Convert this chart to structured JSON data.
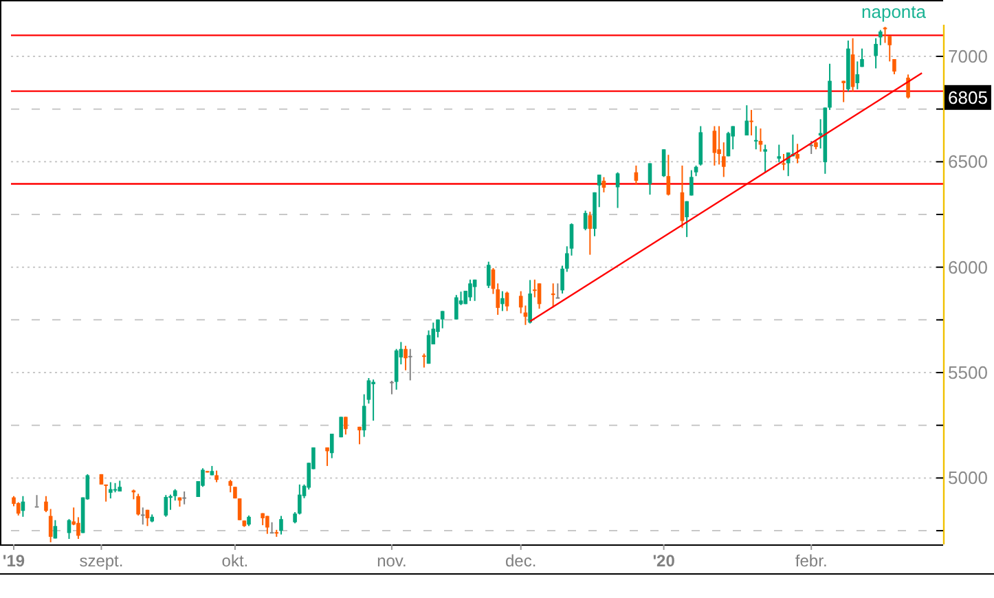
{
  "chart_data": {
    "type": "candlestick",
    "title": "naponta",
    "x": [
      "2019-08-14",
      "2019-08-15",
      "2019-08-16",
      "2019-08-19",
      "2019-08-21",
      "2019-08-22",
      "2019-08-23",
      "2019-08-26",
      "2019-08-27",
      "2019-08-28",
      "2019-08-29",
      "2019-08-30",
      "2019-09-02",
      "2019-09-03",
      "2019-09-04",
      "2019-09-05",
      "2019-09-06",
      "2019-09-09",
      "2019-09-10",
      "2019-09-11",
      "2019-09-12",
      "2019-09-13",
      "2019-09-16",
      "2019-09-17",
      "2019-09-18",
      "2019-09-19",
      "2019-09-20",
      "2019-09-23",
      "2019-09-24",
      "2019-09-25",
      "2019-09-26",
      "2019-09-27",
      "2019-09-30",
      "2019-10-01",
      "2019-10-02",
      "2019-10-03",
      "2019-10-04",
      "2019-10-07",
      "2019-10-08",
      "2019-10-09",
      "2019-10-10",
      "2019-10-11",
      "2019-10-14",
      "2019-10-15",
      "2019-10-16",
      "2019-10-17",
      "2019-10-18",
      "2019-10-21",
      "2019-10-22",
      "2019-10-24",
      "2019-10-25",
      "2019-10-28",
      "2019-10-29",
      "2019-10-30",
      "2019-10-31",
      "2019-11-04",
      "2019-11-05",
      "2019-11-06",
      "2019-11-07",
      "2019-11-08",
      "2019-11-11",
      "2019-11-12",
      "2019-11-13",
      "2019-11-14",
      "2019-11-15",
      "2019-11-18",
      "2019-11-19",
      "2019-11-20",
      "2019-11-21",
      "2019-11-22",
      "2019-11-25",
      "2019-11-26",
      "2019-11-27",
      "2019-11-28",
      "2019-11-29",
      "2019-12-02",
      "2019-12-03",
      "2019-12-04",
      "2019-12-05",
      "2019-12-06",
      "2019-12-09",
      "2019-12-10",
      "2019-12-11",
      "2019-12-12",
      "2019-12-13",
      "2019-12-16",
      "2019-12-17",
      "2019-12-18",
      "2019-12-19",
      "2019-12-20",
      "2019-12-23",
      "2019-12-27",
      "2019-12-30",
      "2020-01-02",
      "2020-01-03",
      "2020-01-06",
      "2020-01-07",
      "2020-01-08",
      "2020-01-09",
      "2020-01-10",
      "2020-01-13",
      "2020-01-14",
      "2020-01-15",
      "2020-01-16",
      "2020-01-17",
      "2020-01-20",
      "2020-01-21",
      "2020-01-22",
      "2020-01-23",
      "2020-01-24",
      "2020-01-27",
      "2020-01-28",
      "2020-01-29",
      "2020-01-30",
      "2020-01-31",
      "2020-02-03",
      "2020-02-04",
      "2020-02-05",
      "2020-02-06",
      "2020-02-07",
      "2020-02-10",
      "2020-02-11",
      "2020-02-12",
      "2020-02-13",
      "2020-02-14",
      "2020-02-17",
      "2020-02-18",
      "2020-02-19",
      "2020-02-20",
      "2020-02-21",
      "2020-02-24"
    ],
    "ohlc": [
      [
        4908,
        4914,
        4866,
        4877
      ],
      [
        4881,
        4885,
        4822,
        4831
      ],
      [
        4844,
        4914,
        4816,
        4888
      ],
      [
        4866,
        4919,
        4866,
        4866
      ],
      [
        4888,
        4914,
        4838,
        4844
      ],
      [
        4820,
        4853,
        4695,
        4721
      ],
      [
        4713,
        4800,
        4713,
        4772
      ],
      [
        4739,
        4805,
        4711,
        4800
      ],
      [
        4794,
        4860,
        4776,
        4779
      ],
      [
        4787,
        4814,
        4711,
        4726
      ],
      [
        4739,
        4908,
        4739,
        4908
      ],
      [
        4899,
        5018,
        4897,
        5013
      ],
      [
        5018,
        5018,
        4969,
        4969
      ],
      [
        4969,
        4969,
        4888,
        4965
      ],
      [
        4930,
        4980,
        4903,
        4947
      ],
      [
        4943,
        4976,
        4932,
        4947
      ],
      [
        4936,
        4987,
        4936,
        4958
      ],
      [
        4941,
        4945,
        4899,
        4932
      ],
      [
        4914,
        4925,
        4822,
        4827
      ],
      [
        4827,
        4860,
        4779,
        4827
      ],
      [
        4849,
        4849,
        4772,
        4809
      ],
      [
        4794,
        4827,
        4790,
        4816
      ],
      [
        4822,
        4919,
        4816,
        4910
      ],
      [
        4906,
        4921,
        4849,
        4914
      ],
      [
        4914,
        4947,
        4893,
        4941
      ],
      [
        4908,
        4908,
        4864,
        4893
      ],
      [
        4908,
        4936,
        4875,
        4908
      ],
      [
        4910,
        4985,
        4910,
        4985
      ],
      [
        4963,
        5046,
        4958,
        5039
      ],
      [
        5033,
        5033,
        5026,
        5026
      ],
      [
        5013,
        5057,
        5013,
        5033
      ],
      [
        5013,
        5035,
        4980,
        4991
      ],
      [
        4985,
        4991,
        4932,
        4963
      ],
      [
        4958,
        4958,
        4903,
        4903
      ],
      [
        4903,
        4903,
        4800,
        4800
      ],
      [
        4798,
        4798,
        4768,
        4772
      ],
      [
        4779,
        4822,
        4772,
        4816
      ],
      [
        4833,
        4833,
        4776,
        4809
      ],
      [
        4820,
        4820,
        4735,
        4765
      ],
      [
        4743,
        4790,
        4743,
        4743
      ],
      [
        4743,
        4754,
        4721,
        4739
      ],
      [
        4750,
        4820,
        4732,
        4805
      ],
      [
        4790,
        4838,
        4785,
        4831
      ],
      [
        4831,
        4969,
        4827,
        4921
      ],
      [
        4914,
        4969,
        4904,
        4963
      ],
      [
        4954,
        5072,
        4945,
        5072
      ],
      [
        5042,
        5145,
        5042,
        5145
      ],
      [
        5145,
        5145,
        5057,
        5127
      ],
      [
        5118,
        5210,
        5094,
        5210
      ],
      [
        5193,
        5290,
        5193,
        5290
      ],
      [
        5290,
        5290,
        5206,
        5232
      ],
      [
        5243,
        5243,
        5160,
        5226
      ],
      [
        5226,
        5397,
        5195,
        5342
      ],
      [
        5371,
        5474,
        5353,
        5463
      ],
      [
        5445,
        5467,
        5272,
        5456
      ],
      [
        5456,
        5461,
        5397,
        5456
      ],
      [
        5456,
        5612,
        5419,
        5605
      ],
      [
        5572,
        5645,
        5539,
        5612
      ],
      [
        5612,
        5627,
        5511,
        5568
      ],
      [
        5579,
        5612,
        5463,
        5579
      ],
      [
        5581,
        5590,
        5524,
        5577
      ],
      [
        5542,
        5700,
        5542,
        5678
      ],
      [
        5634,
        5737,
        5634,
        5708
      ],
      [
        5693,
        5752,
        5667,
        5752
      ],
      [
        5752,
        5792,
        5710,
        5792
      ],
      [
        5752,
        5868,
        5752,
        5857
      ],
      [
        5825,
        5884,
        5820,
        5842
      ],
      [
        5825,
        5888,
        5825,
        5888
      ],
      [
        5857,
        5941,
        5840,
        5923
      ],
      [
        5906,
        5941,
        5840,
        5941
      ],
      [
        5912,
        6026,
        5901,
        6011
      ],
      [
        5989,
        5996,
        5873,
        5897
      ],
      [
        5895,
        5923,
        5774,
        5807
      ],
      [
        5825,
        5886,
        5792,
        5853
      ],
      [
        5879,
        5884,
        5792,
        5814
      ],
      [
        5864,
        5886,
        5781,
        5809
      ],
      [
        5785,
        5818,
        5726,
        5765
      ],
      [
        5737,
        5939,
        5733,
        5875
      ],
      [
        5894,
        5941,
        5857,
        5890
      ],
      [
        5923,
        5923,
        5803,
        5825
      ],
      [
        5875,
        5923,
        5809,
        5868
      ],
      [
        5857,
        5923,
        5853,
        5857
      ],
      [
        5890,
        6007,
        5875,
        5993
      ],
      [
        5993,
        6099,
        5978,
        6066
      ],
      [
        6088,
        6208,
        6055,
        6204
      ],
      [
        6182,
        6268,
        6175,
        6257
      ],
      [
        6246,
        6263,
        6059,
        6182
      ],
      [
        6182,
        6355,
        6147,
        6355
      ],
      [
        6388,
        6439,
        6285,
        6439
      ],
      [
        6410,
        6427,
        6355,
        6377
      ],
      [
        6379,
        6450,
        6281,
        6445
      ],
      [
        6450,
        6482,
        6390,
        6410
      ],
      [
        6395,
        6493,
        6344,
        6493
      ],
      [
        6432,
        6559,
        6428,
        6559
      ],
      [
        6432,
        6533,
        6340,
        6344
      ],
      [
        6355,
        6482,
        6186,
        6219
      ],
      [
        6237,
        6313,
        6143,
        6313
      ],
      [
        6340,
        6460,
        6340,
        6428
      ],
      [
        6450,
        6482,
        6432,
        6476
      ],
      [
        6487,
        6669,
        6482,
        6640
      ],
      [
        6647,
        6669,
        6482,
        6542
      ],
      [
        6559,
        6669,
        6487,
        6537
      ],
      [
        6526,
        6592,
        6428,
        6476
      ],
      [
        6526,
        6642,
        6526,
        6636
      ],
      [
        6620,
        6669,
        6559,
        6669
      ],
      [
        6625,
        6768,
        6625,
        6695
      ],
      [
        6695,
        6746,
        6625,
        6691
      ],
      [
        6600,
        6669,
        6559,
        6603
      ],
      [
        6599,
        6658,
        6548,
        6581
      ],
      [
        6548,
        6581,
        6450,
        6559
      ],
      [
        6515,
        6581,
        6498,
        6526
      ],
      [
        6493,
        6537,
        6460,
        6487
      ],
      [
        6493,
        6544,
        6432,
        6544
      ],
      [
        6526,
        6629,
        6526,
        6537
      ],
      [
        6537,
        6585,
        6493,
        6515
      ],
      [
        6581,
        6599,
        6537,
        6581
      ],
      [
        6592,
        6599,
        6559,
        6570
      ],
      [
        6625,
        6702,
        6563,
        6636
      ],
      [
        6498,
        6757,
        6443,
        6757
      ],
      [
        6757,
        6965,
        6746,
        6884
      ],
      [
        6884,
        6884,
        6783,
        6873
      ],
      [
        6844,
        7075,
        6833,
        7037
      ],
      [
        7009,
        7086,
        6833,
        6855
      ],
      [
        6873,
        6976,
        6844,
        6915
      ],
      [
        6950,
        7037,
        6950,
        6987
      ],
      [
        7002,
        7086,
        6943,
        7059
      ],
      [
        7090,
        7125,
        7053,
        7118
      ],
      [
        7136,
        7140,
        7064,
        7129
      ],
      [
        7097,
        7097,
        6976,
        7053
      ],
      [
        6987,
        6987,
        6915,
        6928
      ],
      [
        6899,
        6914,
        6800,
        6805
      ]
    ],
    "colors": [
      "#ff5f00",
      "#ff5f00",
      "#00a67e",
      "#808080",
      "#ff5f00",
      "#ff5f00",
      "#00a67e",
      "#00a67e",
      "#ff5f00",
      "#ff5f00",
      "#00a67e",
      "#00a67e",
      "#ff5f00",
      "#ff5f00",
      "#00a67e",
      "#00a67e",
      "#00a67e",
      "#ff5f00",
      "#ff5f00",
      "#808080",
      "#ff5f00",
      "#00a67e",
      "#00a67e",
      "#00a67e",
      "#00a67e",
      "#ff5f00",
      "#808080",
      "#00a67e",
      "#00a67e",
      "#ff5f00",
      "#00a67e",
      "#ff5f00",
      "#ff5f00",
      "#ff5f00",
      "#ff5f00",
      "#ff5f00",
      "#00a67e",
      "#ff5f00",
      "#ff5f00",
      "#808080",
      "#ff5f00",
      "#00a67e",
      "#00a67e",
      "#00a67e",
      "#00a67e",
      "#00a67e",
      "#00a67e",
      "#ff5f00",
      "#00a67e",
      "#00a67e",
      "#ff5f00",
      "#ff5f00",
      "#00a67e",
      "#00a67e",
      "#00a67e",
      "#808080",
      "#00a67e",
      "#00a67e",
      "#ff5f00",
      "#808080",
      "#ff5f00",
      "#00a67e",
      "#00a67e",
      "#00a67e",
      "#00a67e",
      "#00a67e",
      "#00a67e",
      "#00a67e",
      "#00a67e",
      "#00a67e",
      "#00a67e",
      "#ff5f00",
      "#ff5f00",
      "#00a67e",
      "#ff5f00",
      "#ff5f00",
      "#ff5f00",
      "#00a67e",
      "#ff5f00",
      "#ff5f00",
      "#ff5f00",
      "#808080",
      "#00a67e",
      "#00a67e",
      "#00a67e",
      "#00a67e",
      "#ff5f00",
      "#00a67e",
      "#00a67e",
      "#ff5f00",
      "#00a67e",
      "#ff5f00",
      "#00a67e",
      "#00a67e",
      "#ff5f00",
      "#ff5f00",
      "#00a67e",
      "#00a67e",
      "#00a67e",
      "#00a67e",
      "#ff5f00",
      "#ff5f00",
      "#ff5f00",
      "#00a67e",
      "#00a67e",
      "#00a67e",
      "#ff5f00",
      "#00a67e",
      "#ff5f00",
      "#00a67e",
      "#00a67e",
      "#ff5f00",
      "#00a67e",
      "#00a67e",
      "#ff5f00",
      "#808080",
      "#ff5f00",
      "#00a67e",
      "#00a67e",
      "#00a67e",
      "#ff5f00",
      "#00a67e",
      "#ff5f00",
      "#00a67e",
      "#00a67e",
      "#00a67e",
      "#00a67e",
      "#ff5f00",
      "#ff5f00",
      "#ff5f00",
      "#ff5f00"
    ],
    "series": [
      {
        "type": "line",
        "color": "#ff0000",
        "x": [
          "2019-12-04",
          "2020-02-27"
        ],
        "values": [
          5743,
          6921
        ]
      }
    ],
    "ref_lines": [
      {
        "axis": "y",
        "value": 7100,
        "color": "#ff0000"
      },
      {
        "axis": "y",
        "value": 6835,
        "color": "#ff0000"
      },
      {
        "axis": "y",
        "value": 6395,
        "color": "#ff0000"
      }
    ],
    "annotations": [
      "6805"
    ],
    "xlim": [
      "2019-08-14",
      "2020-03-02"
    ],
    "xticks": [
      {
        "value": "2019-08-14",
        "label": "'19"
      },
      {
        "value": "2019-09-02",
        "label": "szept."
      },
      {
        "value": "2019-10-01",
        "label": "okt."
      },
      {
        "value": "2019-11-04",
        "label": "nov."
      },
      {
        "value": "2019-12-02",
        "label": "dec."
      },
      {
        "value": "2020-01-02",
        "label": "'20"
      },
      {
        "value": "2020-02-03",
        "label": "febr."
      }
    ],
    "ylim": [
      4685,
      7150
    ],
    "yticks": [
      {
        "value": 4750,
        "label": null
      },
      5000,
      {
        "value": 5250,
        "label": null
      },
      5500,
      {
        "value": 5750,
        "label": null
      },
      6000,
      {
        "value": 6250,
        "label": null
      },
      6500,
      {
        "value": 6750,
        "label": null
      },
      7000
    ],
    "grid": "y"
  }
}
